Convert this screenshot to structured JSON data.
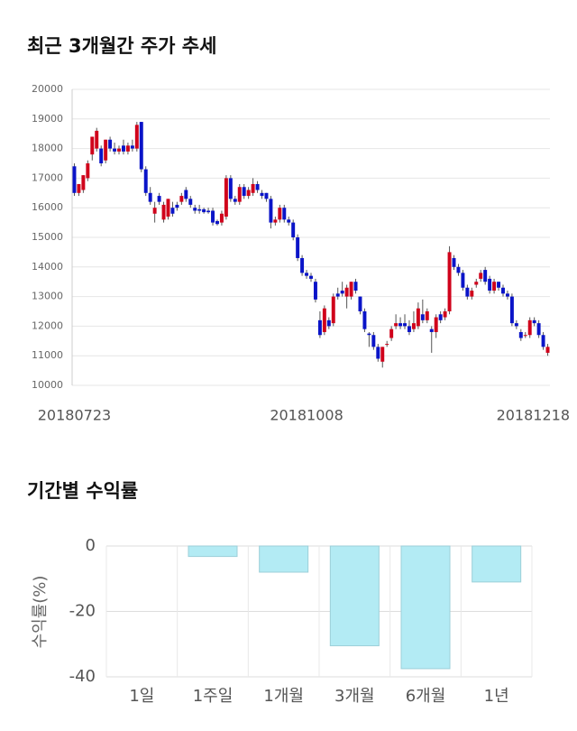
{
  "chart_data": [
    {
      "type": "candlestick",
      "title": "최근 3개월간 주가 추세",
      "up_color": "#d0021b",
      "down_color": "#0a14c8",
      "grid": true,
      "ylim": [
        10000,
        20000
      ],
      "yticks": [
        10000,
        11000,
        12000,
        13000,
        14000,
        15000,
        16000,
        17000,
        18000,
        19000,
        20000
      ],
      "categories": [
        "20180723",
        null,
        null,
        null,
        null,
        null,
        null,
        null,
        null,
        null,
        null,
        null,
        null,
        null,
        null,
        null,
        null,
        null,
        null,
        null,
        null,
        null,
        null,
        null,
        null,
        null,
        null,
        null,
        null,
        null,
        null,
        null,
        null,
        null,
        null,
        null,
        null,
        null,
        null,
        null,
        null,
        null,
        null,
        null,
        null,
        null,
        null,
        null,
        null,
        null,
        null,
        null,
        "20181008",
        null,
        null,
        null,
        null,
        null,
        null,
        null,
        null,
        null,
        null,
        null,
        null,
        null,
        null,
        null,
        null,
        null,
        null,
        null,
        null,
        null,
        null,
        null,
        null,
        null,
        null,
        null,
        null,
        null,
        null,
        null,
        null,
        null,
        null,
        null,
        null,
        null,
        null,
        null,
        null,
        null,
        null,
        null,
        null,
        null,
        null,
        null,
        null,
        null,
        null,
        null,
        null,
        null,
        "20181218"
      ],
      "candles": [
        [
          17400,
          17500,
          16400,
          16500
        ],
        [
          16500,
          16800,
          16400,
          16800
        ],
        [
          16600,
          17100,
          16500,
          17100
        ],
        [
          17000,
          17600,
          16900,
          17500
        ],
        [
          17800,
          18400,
          17600,
          18400
        ],
        [
          18000,
          18700,
          17900,
          18600
        ],
        [
          18000,
          18100,
          17400,
          17500
        ],
        [
          17600,
          18300,
          17500,
          18300
        ],
        [
          18300,
          18400,
          17900,
          18000
        ],
        [
          18000,
          18200,
          17800,
          17900
        ],
        [
          17900,
          18100,
          17800,
          18000
        ],
        [
          18100,
          18300,
          17800,
          17900
        ],
        [
          17900,
          18200,
          17800,
          18100
        ],
        [
          18100,
          18300,
          17900,
          18000
        ],
        [
          18000,
          18900,
          17900,
          18800
        ],
        [
          18900,
          18900,
          17200,
          17300
        ],
        [
          17300,
          17400,
          16400,
          16500
        ],
        [
          16500,
          16700,
          16100,
          16200
        ],
        [
          15800,
          16200,
          15500,
          16000
        ],
        [
          16400,
          16500,
          16100,
          16200
        ],
        [
          15600,
          16200,
          15500,
          16100
        ],
        [
          15700,
          16300,
          15600,
          16300
        ],
        [
          16000,
          16200,
          15700,
          15800
        ],
        [
          16100,
          16200,
          15900,
          16000
        ],
        [
          16200,
          16500,
          16100,
          16400
        ],
        [
          16600,
          16700,
          16200,
          16300
        ],
        [
          16300,
          16400,
          16000,
          16100
        ],
        [
          16000,
          16100,
          15800,
          15900
        ],
        [
          15950,
          16100,
          15800,
          15900
        ],
        [
          15950,
          16000,
          15800,
          15850
        ],
        [
          15900,
          16000,
          15800,
          15850
        ],
        [
          15900,
          16000,
          15400,
          15500
        ],
        [
          15550,
          15600,
          15400,
          15450
        ],
        [
          15500,
          15900,
          15400,
          15800
        ],
        [
          15700,
          17100,
          15600,
          17000
        ],
        [
          17000,
          17100,
          16200,
          16300
        ],
        [
          16300,
          16400,
          16100,
          16200
        ],
        [
          16200,
          16800,
          16100,
          16700
        ],
        [
          16700,
          16800,
          16300,
          16400
        ],
        [
          16400,
          16700,
          16300,
          16600
        ],
        [
          16500,
          17000,
          16400,
          16800
        ],
        [
          16800,
          16900,
          16500,
          16600
        ],
        [
          16500,
          16600,
          16300,
          16400
        ],
        [
          16500,
          16500,
          16200,
          16300
        ],
        [
          16300,
          16400,
          15300,
          15500
        ],
        [
          15500,
          15700,
          15400,
          15600
        ],
        [
          15600,
          16100,
          15500,
          16000
        ],
        [
          16000,
          16100,
          15500,
          15600
        ],
        [
          15600,
          15700,
          15400,
          15500
        ],
        [
          15500,
          15600,
          14900,
          15000
        ],
        [
          15000,
          15100,
          14200,
          14300
        ],
        [
          14300,
          14400,
          13700,
          13800
        ],
        [
          13800,
          13900,
          13600,
          13700
        ],
        [
          13700,
          13800,
          13500,
          13600
        ],
        [
          13500,
          13600,
          12800,
          12900
        ],
        [
          12200,
          12500,
          11600,
          11700
        ],
        [
          11800,
          12700,
          11700,
          12600
        ],
        [
          12200,
          12300,
          11900,
          12000
        ],
        [
          12100,
          13100,
          12000,
          13000
        ],
        [
          13100,
          13300,
          12900,
          13000
        ],
        [
          13200,
          13500,
          13000,
          13100
        ],
        [
          13000,
          13400,
          12600,
          13300
        ],
        [
          13000,
          13500,
          12900,
          13500
        ],
        [
          13500,
          13600,
          13100,
          13200
        ],
        [
          13000,
          13000,
          12400,
          12500
        ],
        [
          12500,
          12600,
          11800,
          11900
        ],
        [
          11750,
          11800,
          11300,
          11700
        ],
        [
          11700,
          11800,
          11200,
          11300
        ],
        [
          11300,
          11400,
          10800,
          10900
        ],
        [
          10800,
          11300,
          10600,
          11300
        ],
        [
          11400,
          11500,
          11300,
          11400
        ],
        [
          11600,
          12000,
          11500,
          11900
        ],
        [
          12000,
          12400,
          11900,
          12100
        ],
        [
          12100,
          12300,
          11900,
          12000
        ],
        [
          12100,
          12400,
          11900,
          12000
        ],
        [
          12000,
          12200,
          11700,
          11800
        ],
        [
          11900,
          12500,
          11800,
          12100
        ],
        [
          12000,
          12800,
          11900,
          12600
        ],
        [
          12400,
          12900,
          12100,
          12200
        ],
        [
          12200,
          12600,
          12100,
          12500
        ],
        [
          11900,
          12000,
          11100,
          11800
        ],
        [
          11800,
          12400,
          11600,
          12300
        ],
        [
          12400,
          12500,
          12100,
          12200
        ],
        [
          12300,
          12600,
          12200,
          12500
        ],
        [
          12500,
          14700,
          12400,
          14500
        ],
        [
          14300,
          14400,
          13900,
          14000
        ],
        [
          14000,
          14100,
          13700,
          13800
        ],
        [
          13800,
          13900,
          13200,
          13300
        ],
        [
          13300,
          13400,
          12900,
          13000
        ],
        [
          13000,
          13300,
          12900,
          13200
        ],
        [
          13400,
          13600,
          13300,
          13500
        ],
        [
          13600,
          13900,
          13500,
          13800
        ],
        [
          13900,
          14000,
          13400,
          13500
        ],
        [
          13600,
          13700,
          13100,
          13200
        ],
        [
          13200,
          13600,
          13100,
          13500
        ],
        [
          13500,
          13500,
          13200,
          13300
        ],
        [
          13300,
          13400,
          13000,
          13100
        ],
        [
          13100,
          13200,
          12900,
          13000
        ],
        [
          13000,
          13100,
          12000,
          12100
        ],
        [
          12100,
          12200,
          11900,
          12000
        ],
        [
          11800,
          11900,
          11500,
          11600
        ],
        [
          11700,
          11800,
          11600,
          11700
        ],
        [
          11700,
          12300,
          11600,
          12200
        ],
        [
          12200,
          12300,
          12000,
          12100
        ],
        [
          12100,
          12200,
          11600,
          11700
        ],
        [
          11700,
          11800,
          11200,
          11300
        ],
        [
          11100,
          11400,
          11000,
          11300
        ]
      ]
    },
    {
      "type": "bar",
      "title": "기간별 수익률",
      "ylabel": "수익률(%)",
      "categories": [
        "1일",
        "1주일",
        "1개월",
        "3개월",
        "6개월",
        "1년"
      ],
      "values": [
        0,
        -3.2,
        -8,
        -30.5,
        -37.5,
        -11
      ],
      "color": "#b3ebf4",
      "edge_color": "#9ccfd9",
      "ylim": [
        -40,
        0
      ],
      "yticks": [
        0,
        -20,
        -40
      ],
      "grid": true
    }
  ]
}
